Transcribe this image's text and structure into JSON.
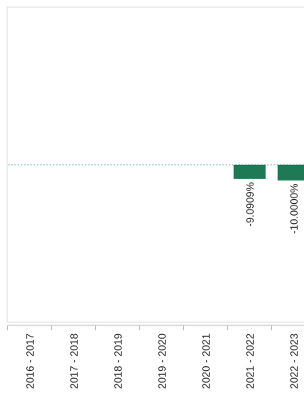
{
  "chart_data": {
    "type": "bar",
    "title": "",
    "xlabel": "",
    "ylabel": "",
    "categories": [
      "2016 - 2017",
      "2017 - 2018",
      "2018 - 2019",
      "2019 - 2020",
      "2020 - 2021",
      "2021 - 2022",
      "2022 - 2023"
    ],
    "values": [
      null,
      null,
      null,
      null,
      null,
      -9.0909,
      -10.0
    ],
    "data_labels": [
      "",
      "",
      "",
      "",
      "",
      "-9.0909%",
      "-10.0000%"
    ],
    "ylim": [
      -100,
      100
    ],
    "bar_color": "#1e7a55",
    "zero_line_color": "#7fb6b4",
    "grid": false
  }
}
